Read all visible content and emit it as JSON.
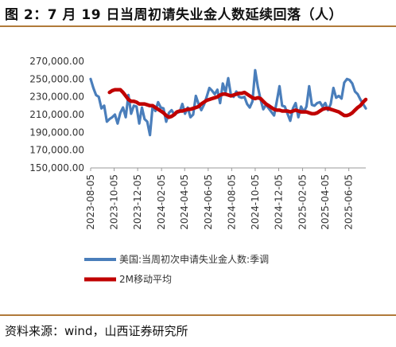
{
  "title": "图 2：7 月 19 日当周初请失业金人数延续回落（人）",
  "source": "资料来源：wind，山西证券研究所",
  "colors": {
    "raw": "#4a7ebb",
    "ma": "#c00000",
    "rule": "#b07a3a"
  },
  "chart_data": {
    "type": "line",
    "title": "",
    "xlabel": "",
    "ylabel": "",
    "ylim": [
      150000,
      270000
    ],
    "y_ticks": [
      "150,000.00",
      "170,000.00",
      "190,000.00",
      "210,000.00",
      "230,000.00",
      "250,000.00",
      "270,000.00"
    ],
    "x_ticks": [
      "2023-08-05",
      "2023-10-05",
      "2023-12-05",
      "2024-02-05",
      "2024-04-05",
      "2024-06-05",
      "2024-08-05",
      "2024-10-05",
      "2024-12-05",
      "2025-02-05",
      "2025-04-05",
      "2025-06-05"
    ],
    "x_range": [
      "2023-08-05",
      "2025-07-19"
    ],
    "grid": false,
    "legend_position": "bottom",
    "series": [
      {
        "name": "美国:当周初次申请失业金人数:季调",
        "x": [
          "2023-08-05",
          "2023-08-12",
          "2023-08-19",
          "2023-08-26",
          "2023-09-02",
          "2023-09-09",
          "2023-09-16",
          "2023-09-23",
          "2023-09-30",
          "2023-10-07",
          "2023-10-14",
          "2023-10-21",
          "2023-10-28",
          "2023-11-04",
          "2023-11-11",
          "2023-11-18",
          "2023-11-25",
          "2023-12-02",
          "2023-12-09",
          "2023-12-16",
          "2023-12-23",
          "2023-12-30",
          "2024-01-06",
          "2024-01-13",
          "2024-01-20",
          "2024-01-27",
          "2024-02-03",
          "2024-02-10",
          "2024-02-17",
          "2024-02-24",
          "2024-03-02",
          "2024-03-09",
          "2024-03-16",
          "2024-03-23",
          "2024-03-30",
          "2024-04-06",
          "2024-04-13",
          "2024-04-20",
          "2024-04-27",
          "2024-05-04",
          "2024-05-11",
          "2024-05-18",
          "2024-05-25",
          "2024-06-01",
          "2024-06-08",
          "2024-06-15",
          "2024-06-22",
          "2024-06-29",
          "2024-07-06",
          "2024-07-13",
          "2024-07-20",
          "2024-07-27",
          "2024-08-03",
          "2024-08-10",
          "2024-08-17",
          "2024-08-24",
          "2024-08-31",
          "2024-09-07",
          "2024-09-14",
          "2024-09-21",
          "2024-09-28",
          "2024-10-05",
          "2024-10-12",
          "2024-10-19",
          "2024-10-26",
          "2024-11-02",
          "2024-11-09",
          "2024-11-16",
          "2024-11-23",
          "2024-11-30",
          "2024-12-07",
          "2024-12-14",
          "2024-12-21",
          "2024-12-28",
          "2025-01-04",
          "2025-01-11",
          "2025-01-18",
          "2025-01-25",
          "2025-02-01",
          "2025-02-08",
          "2025-02-15",
          "2025-02-22",
          "2025-03-01",
          "2025-03-08",
          "2025-03-15",
          "2025-03-22",
          "2025-03-29",
          "2025-04-05",
          "2025-04-12",
          "2025-04-19",
          "2025-04-26",
          "2025-05-03",
          "2025-05-10",
          "2025-05-17",
          "2025-05-24",
          "2025-05-31",
          "2025-06-07",
          "2025-06-14",
          "2025-06-21",
          "2025-06-28",
          "2025-07-05",
          "2025-07-12",
          "2025-07-19"
        ],
        "values": [
          250000,
          240000,
          232000,
          230000,
          217000,
          220000,
          202000,
          205000,
          207000,
          210000,
          200000,
          212000,
          218000,
          207000,
          232000,
          211000,
          220000,
          219000,
          200000,
          218000,
          205000,
          202000,
          187000,
          220000,
          214000,
          224000,
          218000,
          217000,
          202000,
          212000,
          215000,
          210000,
          212000,
          213000,
          222000,
          211000,
          218000,
          207000,
          210000,
          231000,
          222000,
          215000,
          221000,
          230000,
          240000,
          237000,
          233000,
          238000,
          223000,
          245000,
          235000,
          251000,
          232000,
          230000,
          236000,
          230000,
          229000,
          230000,
          222000,
          218000,
          225000,
          260000,
          241000,
          227000,
          216000,
          221000,
          217000,
          213000,
          209000,
          225000,
          242000,
          220000,
          219000,
          211000,
          203000,
          217000,
          223000,
          207000,
          219000,
          213000,
          219000,
          242000,
          221000,
          220000,
          223000,
          224000,
          219000,
          223000,
          215000,
          222000,
          240000,
          229000,
          231000,
          228000,
          246000,
          250000,
          249000,
          245000,
          236000,
          233000,
          227000,
          222000,
          217000
        ]
      },
      {
        "name": "2M移动平均",
        "x": [
          "2023-09-23",
          "2023-09-30",
          "2023-10-07",
          "2023-10-14",
          "2023-10-21",
          "2023-10-28",
          "2023-11-04",
          "2023-11-11",
          "2023-11-18",
          "2023-11-25",
          "2023-12-02",
          "2023-12-09",
          "2023-12-16",
          "2023-12-23",
          "2023-12-30",
          "2024-01-06",
          "2024-01-13",
          "2024-01-20",
          "2024-01-27",
          "2024-02-03",
          "2024-02-10",
          "2024-02-17",
          "2024-02-24",
          "2024-03-02",
          "2024-03-09",
          "2024-03-16",
          "2024-03-23",
          "2024-03-30",
          "2024-04-06",
          "2024-04-13",
          "2024-04-20",
          "2024-04-27",
          "2024-05-04",
          "2024-05-11",
          "2024-05-18",
          "2024-05-25",
          "2024-06-01",
          "2024-06-08",
          "2024-06-15",
          "2024-06-22",
          "2024-06-29",
          "2024-07-06",
          "2024-07-13",
          "2024-07-20",
          "2024-07-27",
          "2024-08-03",
          "2024-08-10",
          "2024-08-17",
          "2024-08-24",
          "2024-08-31",
          "2024-09-07",
          "2024-09-14",
          "2024-09-21",
          "2024-09-28",
          "2024-10-05",
          "2024-10-12",
          "2024-10-19",
          "2024-10-26",
          "2024-11-02",
          "2024-11-09",
          "2024-11-16",
          "2024-11-23",
          "2024-11-30",
          "2024-12-07",
          "2024-12-14",
          "2024-12-21",
          "2024-12-28",
          "2025-01-04",
          "2025-01-11",
          "2025-01-18",
          "2025-01-25",
          "2025-02-01",
          "2025-02-08",
          "2025-02-15",
          "2025-02-22",
          "2025-03-01",
          "2025-03-08",
          "2025-03-15",
          "2025-03-22",
          "2025-03-29",
          "2025-04-05",
          "2025-04-12",
          "2025-04-19",
          "2025-04-26",
          "2025-05-03",
          "2025-05-10",
          "2025-05-17",
          "2025-05-24",
          "2025-05-31",
          "2025-06-07",
          "2025-06-14",
          "2025-06-21",
          "2025-06-28",
          "2025-07-05",
          "2025-07-12",
          "2025-07-19"
        ],
        "values": [
          235000,
          237000,
          238000,
          238000,
          238000,
          235000,
          231000,
          227000,
          225000,
          225000,
          224000,
          222000,
          222000,
          222000,
          221000,
          220000,
          220000,
          218000,
          216000,
          214000,
          212000,
          209000,
          207000,
          208000,
          210000,
          213000,
          214000,
          214000,
          215000,
          216000,
          216000,
          217000,
          218000,
          219000,
          222000,
          224000,
          226000,
          227000,
          228000,
          229000,
          230000,
          232000,
          233000,
          233000,
          232000,
          231000,
          232000,
          233000,
          234000,
          234000,
          235000,
          233000,
          231000,
          229000,
          228000,
          229000,
          228000,
          225000,
          222000,
          220000,
          218000,
          216000,
          215000,
          215000,
          214000,
          214000,
          214000,
          213000,
          214000,
          215000,
          214000,
          213000,
          213000,
          213000,
          212000,
          211000,
          211000,
          212000,
          214000,
          216000,
          217000,
          217000,
          216000,
          215000,
          214000,
          213000,
          211000,
          209000,
          209000,
          210000,
          212000,
          215000,
          218000,
          220000,
          224000,
          227000
        ]
      }
    ]
  }
}
